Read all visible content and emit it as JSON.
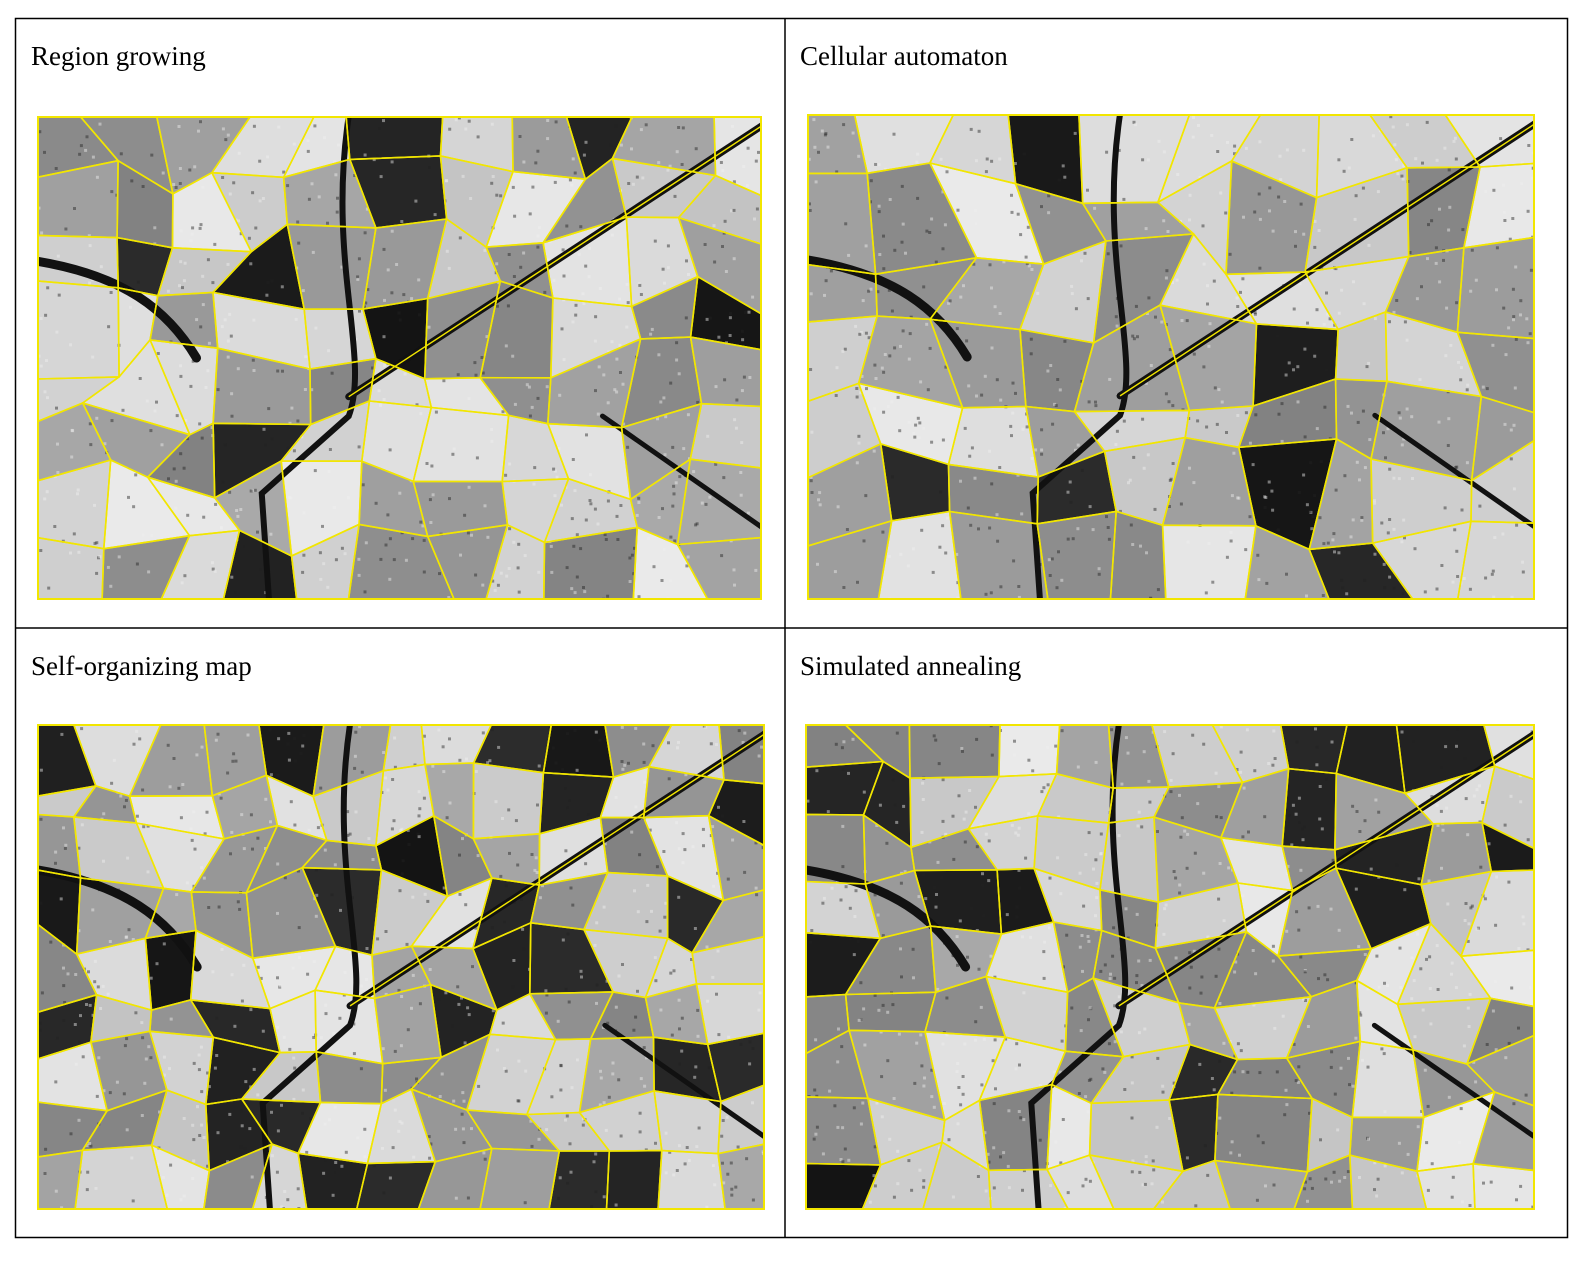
{
  "panels": [
    {
      "title": "Region growing"
    },
    {
      "title": "Cellular automaton"
    },
    {
      "title": "Self-organizing map"
    },
    {
      "title": "Simulated annealing"
    }
  ]
}
